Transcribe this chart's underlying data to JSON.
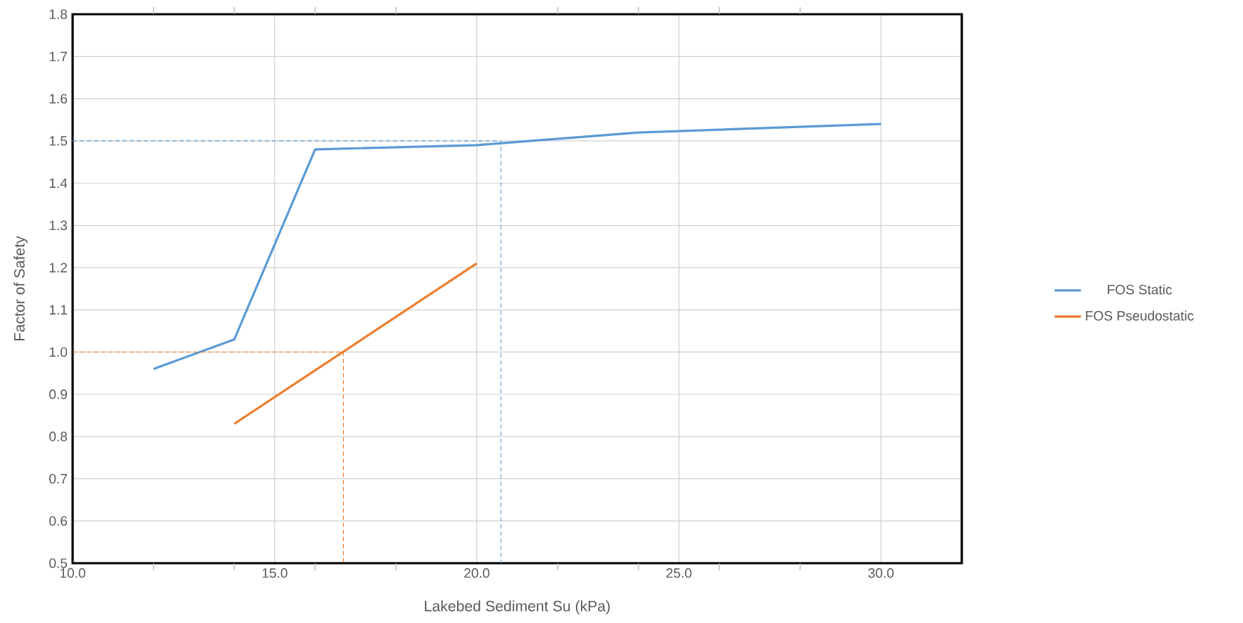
{
  "chart_data": {
    "type": "line",
    "xlabel": "Lakebed Sediment Su (kPa)",
    "ylabel": "Factor of Safety",
    "xlim": [
      10,
      32
    ],
    "ylim": [
      0.5,
      1.8
    ],
    "xticks": [
      {
        "value": 10,
        "label": "10.0"
      },
      {
        "value": 12,
        "label": null
      },
      {
        "value": 14,
        "label": null
      },
      {
        "value": 15,
        "label": "15.0"
      },
      {
        "value": 16,
        "label": null
      },
      {
        "value": 18,
        "label": null
      },
      {
        "value": 20,
        "label": "20.0"
      },
      {
        "value": 22,
        "label": null
      },
      {
        "value": 24,
        "label": null
      },
      {
        "value": 25,
        "label": "25.0"
      },
      {
        "value": 26,
        "label": null
      },
      {
        "value": 28,
        "label": null
      },
      {
        "value": 30,
        "label": "30.0"
      }
    ],
    "yticks": [
      0.5,
      0.6,
      0.7,
      0.8,
      0.9,
      {
        "value": 1.0,
        "label": "1.0"
      },
      1.1,
      1.2,
      1.3,
      1.4,
      1.5,
      1.6,
      1.7,
      1.8
    ],
    "grid": true,
    "legend": "right",
    "marker": "none",
    "series": [
      {
        "name": "FOS Static",
        "color": "#5b9bd5",
        "x": [
          12,
          14,
          16,
          20,
          24,
          30
        ],
        "values": [
          0.96,
          1.03,
          1.48,
          1.49,
          1.52,
          1.54
        ]
      },
      {
        "name": "FOS Pseudostatic",
        "color": "#ed7d31",
        "x": [
          14,
          20
        ],
        "values": [
          0.83,
          1.21
        ]
      },
      {
        "type": "line",
        "color": "#5b9bd5",
        "line_style": "dashed",
        "x": [
          10,
          20.6,
          20.6
        ],
        "values": [
          1.5,
          1.5,
          0.5
        ]
      },
      {
        "type": "line",
        "color": "#ed7d31",
        "line_style": "dashed",
        "x": [
          10,
          16.7,
          16.7
        ],
        "values": [
          1.0,
          1.0,
          0.5
        ]
      }
    ]
  }
}
